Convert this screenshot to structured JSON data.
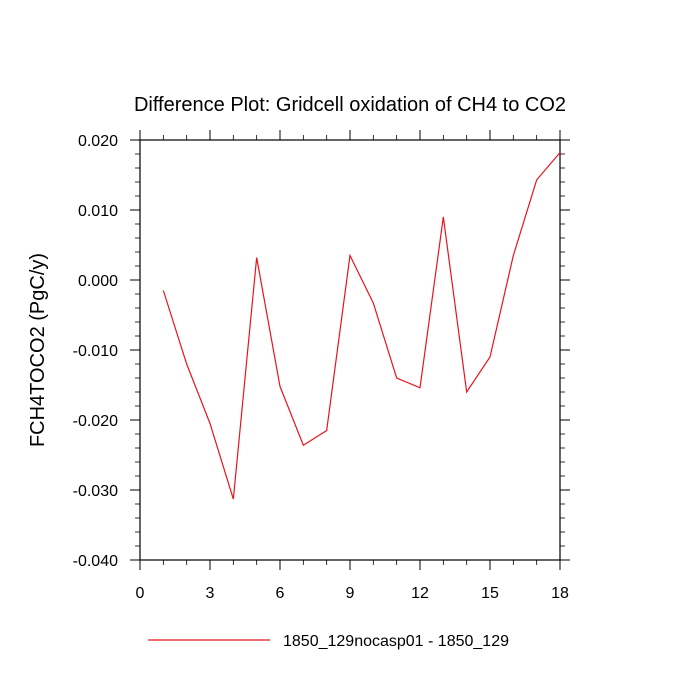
{
  "chart_data": {
    "type": "line",
    "title": "Difference Plot: Gridcell oxidation of CH4 to CO2",
    "xlabel": "",
    "ylabel": "FCH4TOCO2  (PgC/y)",
    "xlim": [
      0,
      18
    ],
    "ylim": [
      -0.04,
      0.02
    ],
    "x_ticks": [
      0,
      3,
      6,
      9,
      12,
      15,
      18
    ],
    "x_tick_labels": [
      "0",
      "3",
      "6",
      "9",
      "12",
      "15",
      "18"
    ],
    "y_ticks": [
      -0.04,
      -0.03,
      -0.02,
      -0.01,
      0.0,
      0.01,
      0.02
    ],
    "y_tick_labels": [
      "-0.040",
      "-0.030",
      "-0.020",
      "-0.010",
      "0.000",
      "0.010",
      "0.020"
    ],
    "grid": false,
    "legend_position": "bottom",
    "series": [
      {
        "name": "1850_129nocasp01 - 1850_129",
        "color": "#e8141c",
        "x": [
          1,
          2,
          3,
          4,
          5,
          6,
          7,
          8,
          9,
          10,
          11,
          12,
          13,
          14,
          15,
          16,
          17,
          18
        ],
        "y": [
          -0.0015,
          -0.012,
          -0.0205,
          -0.0313,
          0.0032,
          -0.0152,
          -0.0236,
          -0.0215,
          0.0035,
          -0.0033,
          -0.014,
          -0.0154,
          0.009,
          -0.016,
          -0.011,
          0.0035,
          0.0143,
          0.0182
        ]
      }
    ]
  }
}
